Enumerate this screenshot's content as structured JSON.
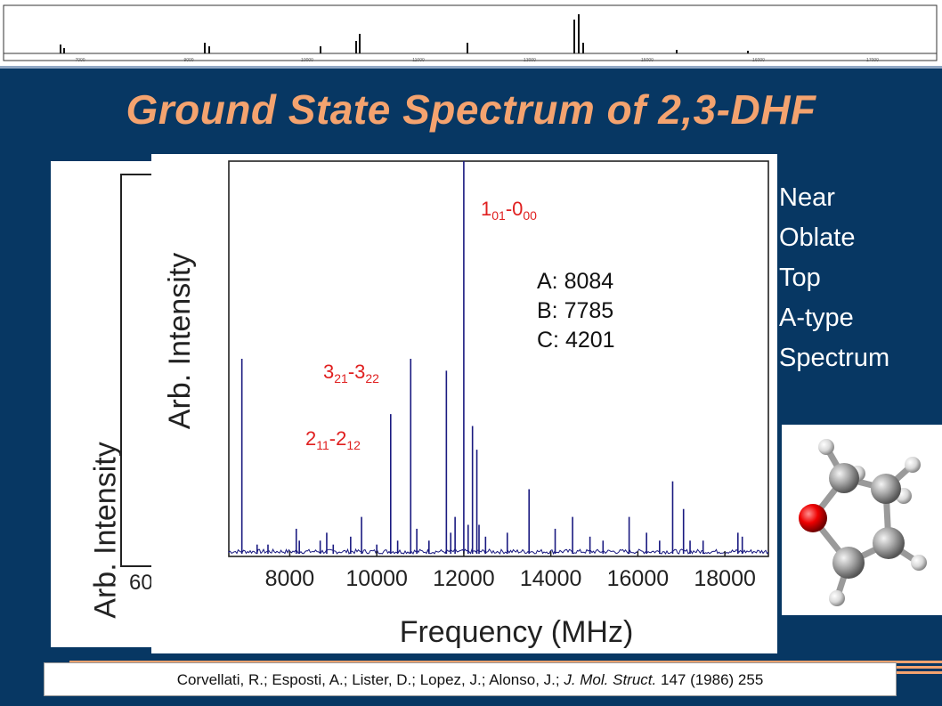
{
  "title": "Ground State Spectrum of 2,3-DHF",
  "side_notes": [
    "Near",
    "Oblate",
    "Top",
    "A-type",
    "Spectrum"
  ],
  "constants": [
    "A: 8084",
    "B: 7785",
    "C: 4201"
  ],
  "back_panel": {
    "ylabel": "Arb. Intensity",
    "tick": "60"
  },
  "citation": {
    "authors": "Corvellati, R.; Esposti, A.; Lister, D.; Lopez, J.; Alonso, J.;",
    "journal": "J. Mol. Struct.",
    "tail": "147 (1986) 255"
  },
  "top_strip_labels": [
    "7000",
    "9000",
    "10000",
    "11000",
    "13000",
    "15000",
    "16000",
    "17000"
  ],
  "colors": {
    "background": "#073763",
    "title": "#f4a36f",
    "spectrum": "#1a1a80",
    "annotation": "#e02020"
  },
  "chart_data": {
    "type": "line",
    "xlabel": "Frequency (MHz)",
    "ylabel": "Arb. Intensity",
    "xlim": [
      6600,
      19000
    ],
    "ylim": [
      0,
      1
    ],
    "xticks": [
      8000,
      10000,
      12000,
      14000,
      16000,
      18000
    ],
    "grid": false,
    "series": [
      {
        "x": [
          6900,
          7250,
          7500,
          8150,
          8220,
          8700,
          8850,
          9000,
          9400,
          9650,
          10000,
          10320,
          10480,
          10780,
          10920,
          11200,
          11600,
          11700,
          11800,
          12000,
          12100,
          12200,
          12300,
          12350,
          12500,
          13000,
          13500,
          14100,
          14500,
          14900,
          15200,
          15800,
          16200,
          16500,
          16800,
          17050,
          17200,
          17500,
          18300,
          18400
        ],
        "y": [
          0.5,
          0.03,
          0.03,
          0.07,
          0.04,
          0.04,
          0.06,
          0.03,
          0.05,
          0.1,
          0.03,
          0.36,
          0.04,
          0.5,
          0.07,
          0.04,
          0.47,
          0.06,
          0.1,
          1.0,
          0.08,
          0.33,
          0.27,
          0.08,
          0.05,
          0.06,
          0.17,
          0.07,
          0.1,
          0.05,
          0.04,
          0.1,
          0.06,
          0.04,
          0.19,
          0.12,
          0.04,
          0.04,
          0.06,
          0.05
        ]
      }
    ],
    "annotations": [
      {
        "label": "1",
        "sub1": "01",
        "mid": "-0",
        "sub2": "00",
        "x": 12000
      },
      {
        "label": "3",
        "sub1": "21",
        "mid": "-3",
        "sub2": "22",
        "x": 10780
      },
      {
        "label": "2",
        "sub1": "11",
        "mid": "-2",
        "sub2": "12",
        "x": 10320
      }
    ]
  }
}
